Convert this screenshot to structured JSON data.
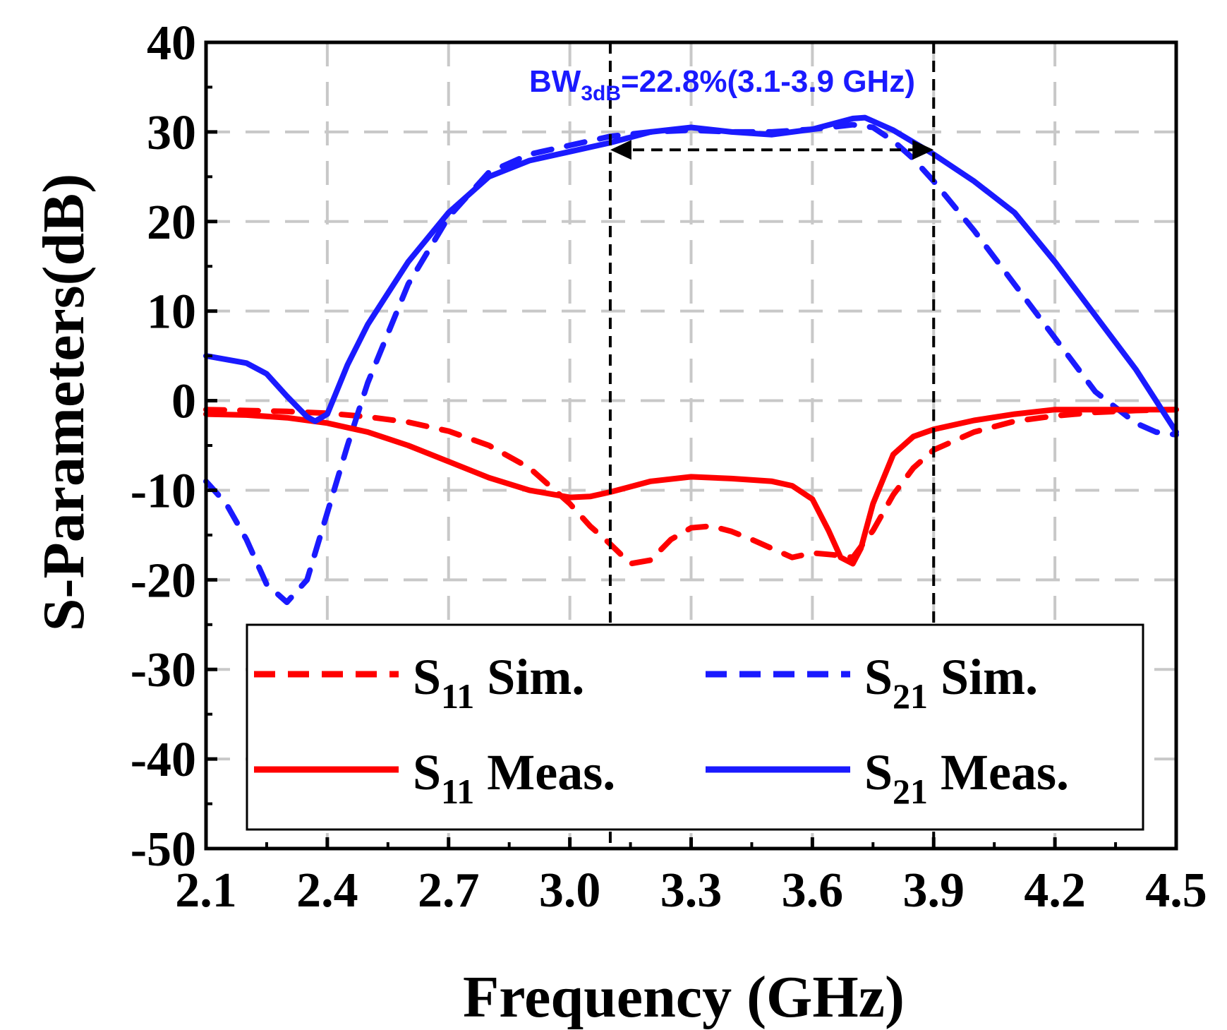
{
  "chart_data": {
    "type": "line",
    "xlabel": "Frequency (GHz)",
    "ylabel": "S-Parameters(dB)",
    "xlim": [
      2.1,
      4.5
    ],
    "ylim": [
      -50,
      40
    ],
    "grid": true,
    "x_ticks": [
      2.1,
      2.4,
      2.7,
      3.0,
      3.3,
      3.6,
      3.9,
      4.2,
      4.5
    ],
    "x_tick_labels": [
      "2.1",
      "2.4",
      "2.7",
      "3.0",
      "3.3",
      "3.6",
      "3.9",
      "4.2",
      "4.5"
    ],
    "y_ticks": [
      40,
      30,
      20,
      10,
      0,
      -10,
      -20,
      -30,
      -40,
      -50
    ],
    "y_tick_labels": [
      "40",
      "30",
      "20",
      "10",
      "0",
      "-10",
      "-20",
      "-30",
      "-40",
      "-50"
    ],
    "series": [
      {
        "name": "S11 Sim.",
        "label_base": "S",
        "label_sub": "11",
        "label_suffix": " Sim.",
        "color": "#ff0000",
        "dash": true,
        "x": [
          2.1,
          2.2,
          2.3,
          2.4,
          2.5,
          2.6,
          2.7,
          2.8,
          2.9,
          3.0,
          3.05,
          3.1,
          3.15,
          3.2,
          3.25,
          3.3,
          3.35,
          3.4,
          3.45,
          3.5,
          3.55,
          3.6,
          3.65,
          3.7,
          3.75,
          3.8,
          3.85,
          3.9,
          4.0,
          4.1,
          4.2,
          4.3,
          4.4,
          4.5
        ],
        "y": [
          -1.0,
          -1.1,
          -1.2,
          -1.4,
          -1.8,
          -2.4,
          -3.4,
          -5.0,
          -7.5,
          -11.5,
          -14.0,
          -16.0,
          -18.2,
          -17.8,
          -15.5,
          -14.2,
          -14.0,
          -14.6,
          -15.5,
          -16.5,
          -17.5,
          -17.0,
          -17.2,
          -17.5,
          -14.5,
          -10.5,
          -7.5,
          -5.5,
          -3.5,
          -2.3,
          -1.7,
          -1.3,
          -1.1,
          -1.0
        ]
      },
      {
        "name": "S21 Sim.",
        "label_base": "S",
        "label_sub": "21",
        "label_suffix": " Sim.",
        "color": "#1a1aff",
        "dash": true,
        "x": [
          2.1,
          2.15,
          2.2,
          2.25,
          2.3,
          2.35,
          2.4,
          2.45,
          2.5,
          2.55,
          2.6,
          2.7,
          2.8,
          2.9,
          3.0,
          3.1,
          3.2,
          3.3,
          3.4,
          3.5,
          3.6,
          3.7,
          3.75,
          3.8,
          3.85,
          3.9,
          4.0,
          4.1,
          4.2,
          4.3,
          4.4,
          4.45,
          4.5
        ],
        "y": [
          -9.0,
          -11.5,
          -15.5,
          -20.5,
          -22.5,
          -20.0,
          -12.5,
          -5.0,
          2.0,
          7.5,
          13.0,
          20.5,
          25.5,
          27.5,
          28.5,
          29.5,
          30.0,
          30.2,
          30.0,
          30.0,
          30.3,
          30.8,
          30.5,
          29.0,
          27.0,
          24.5,
          19.0,
          13.0,
          7.0,
          1.0,
          -2.5,
          -3.5,
          -3.8
        ]
      },
      {
        "name": "S11 Meas.",
        "label_base": "S",
        "label_sub": "11",
        "label_suffix": " Meas.",
        "color": "#ff0000",
        "dash": false,
        "x": [
          2.1,
          2.2,
          2.3,
          2.4,
          2.5,
          2.6,
          2.7,
          2.8,
          2.9,
          3.0,
          3.05,
          3.1,
          3.2,
          3.3,
          3.4,
          3.5,
          3.55,
          3.6,
          3.64,
          3.67,
          3.7,
          3.72,
          3.75,
          3.8,
          3.85,
          3.9,
          4.0,
          4.1,
          4.2,
          4.3,
          4.4,
          4.5
        ],
        "y": [
          -1.5,
          -1.6,
          -1.9,
          -2.5,
          -3.5,
          -5.0,
          -6.8,
          -8.6,
          -10.0,
          -10.8,
          -10.7,
          -10.2,
          -9.0,
          -8.5,
          -8.7,
          -9.0,
          -9.5,
          -11.0,
          -14.5,
          -17.5,
          -18.2,
          -16.5,
          -11.5,
          -6.0,
          -4.0,
          -3.2,
          -2.2,
          -1.5,
          -1.0,
          -1.0,
          -1.0,
          -1.0
        ]
      },
      {
        "name": "S21 Meas.",
        "label_base": "S",
        "label_sub": "21",
        "label_suffix": " Meas.",
        "color": "#1a1aff",
        "dash": false,
        "x": [
          2.1,
          2.2,
          2.25,
          2.3,
          2.35,
          2.37,
          2.4,
          2.45,
          2.5,
          2.55,
          2.6,
          2.7,
          2.8,
          2.9,
          3.0,
          3.1,
          3.2,
          3.3,
          3.4,
          3.5,
          3.6,
          3.7,
          3.73,
          3.8,
          3.9,
          4.0,
          4.1,
          4.2,
          4.3,
          4.4,
          4.45,
          4.5
        ],
        "y": [
          5.0,
          4.2,
          3.0,
          0.5,
          -1.8,
          -2.3,
          -1.5,
          4.0,
          8.5,
          12.0,
          15.5,
          21.0,
          25.0,
          26.8,
          27.8,
          28.8,
          30.0,
          30.5,
          30.0,
          29.7,
          30.3,
          31.5,
          31.6,
          30.2,
          27.5,
          24.5,
          21.0,
          15.5,
          9.5,
          3.5,
          0.0,
          -3.5
        ]
      }
    ],
    "markers": [
      {
        "type": "vline",
        "x": 3.1,
        "style": "dashed"
      },
      {
        "type": "vline",
        "x": 3.9,
        "style": "dashed"
      },
      {
        "type": "double-arrow",
        "x_start": 3.1,
        "x_end": 3.9,
        "y": 28,
        "style": "dashed"
      }
    ],
    "annotation": {
      "prefix": "BW",
      "sub": "3dB",
      "rest": "=22.8%(3.1-3.9 GHz)",
      "color": "#1a1aff"
    },
    "legend_position": "bottom-center"
  }
}
